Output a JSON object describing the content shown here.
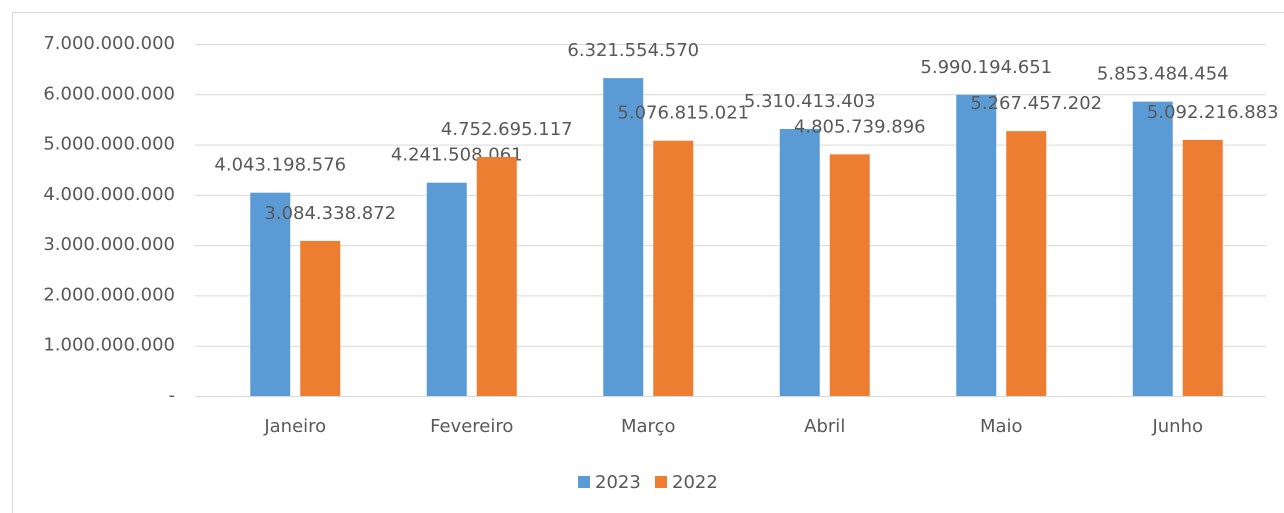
{
  "chart_data": {
    "type": "bar",
    "categories": [
      "Janeiro",
      "Fevereiro",
      "Março",
      "Abril",
      "Maio",
      "Junho"
    ],
    "series": [
      {
        "name": "2023",
        "color": "#5b9bd5",
        "values": [
          4043198576,
          4241508061,
          6321554570,
          5310413403,
          5990194651,
          5853484454
        ],
        "value_labels": [
          "4.043.198.576",
          "4.241.508.061",
          "6.321.554.570",
          "5.310.413.403",
          "5.990.194.651",
          "5.853.484.454"
        ]
      },
      {
        "name": "2022",
        "color": "#ed7d31",
        "values": [
          3084338872,
          4752695117,
          5076815021,
          4805739896,
          5267457202,
          5092216883
        ],
        "value_labels": [
          "3.084.338.872",
          "4.752.695.117",
          "5.076.815.021",
          "4.805.739.896",
          "5.267.457.202",
          "5.092.216.883"
        ]
      }
    ],
    "ylim": [
      0,
      7000000000
    ],
    "yticks": [
      {
        "value": 0,
        "label": "-"
      },
      {
        "value": 1000000000,
        "label": "1.000.000.000"
      },
      {
        "value": 2000000000,
        "label": "2.000.000.000"
      },
      {
        "value": 3000000000,
        "label": "3.000.000.000"
      },
      {
        "value": 4000000000,
        "label": "4.000.000.000"
      },
      {
        "value": 5000000000,
        "label": "5.000.000.000"
      },
      {
        "value": 6000000000,
        "label": "6.000.000.000"
      },
      {
        "value": 7000000000,
        "label": "7.000.000.000"
      }
    ],
    "grid": true,
    "legend": "bottom"
  }
}
